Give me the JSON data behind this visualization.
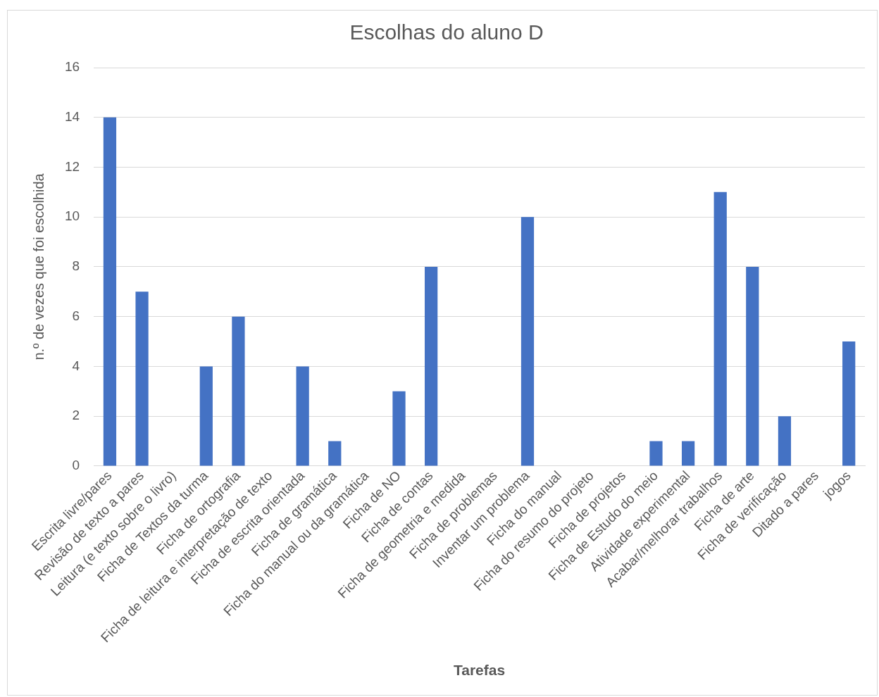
{
  "chart_data": {
    "type": "bar",
    "title": "Escolhas do aluno D",
    "xlabel": "Tarefas",
    "ylabel": "n.º de vezes que foi escolhida",
    "categories": [
      "Escrita livre/pares",
      "Revisão de texto a pares",
      "Leitura (e texto sobre o livro)",
      "Ficha de Textos da turma",
      "Ficha de ortografia",
      "Ficha de leitura e interpretação de texto",
      "Ficha de escrita orientada",
      "Ficha de gramática",
      "Ficha do manual ou da gramática",
      "Ficha de NO",
      "Ficha de contas",
      "Ficha de geometria e medida",
      "Ficha de problemas",
      "Inventar um problema",
      "Ficha do manual",
      "Ficha do resumo do projeto",
      "Ficha de projetos",
      "Ficha de Estudo do meio",
      "Atividade experimental",
      "Acabar/melhorar trabalhos",
      "Ficha de arte",
      "Ficha de verificação",
      "Ditado a pares",
      "jogos"
    ],
    "values": [
      14,
      7,
      0,
      4,
      6,
      0,
      4,
      1,
      0,
      3,
      8,
      0,
      0,
      10,
      0,
      0,
      0,
      1,
      1,
      11,
      8,
      2,
      0,
      5
    ],
    "color": "#4472c4",
    "ylim": [
      0,
      16
    ],
    "yticks": [
      0,
      2,
      4,
      6,
      8,
      10,
      12,
      14,
      16
    ],
    "grid": "y",
    "legend": false
  }
}
